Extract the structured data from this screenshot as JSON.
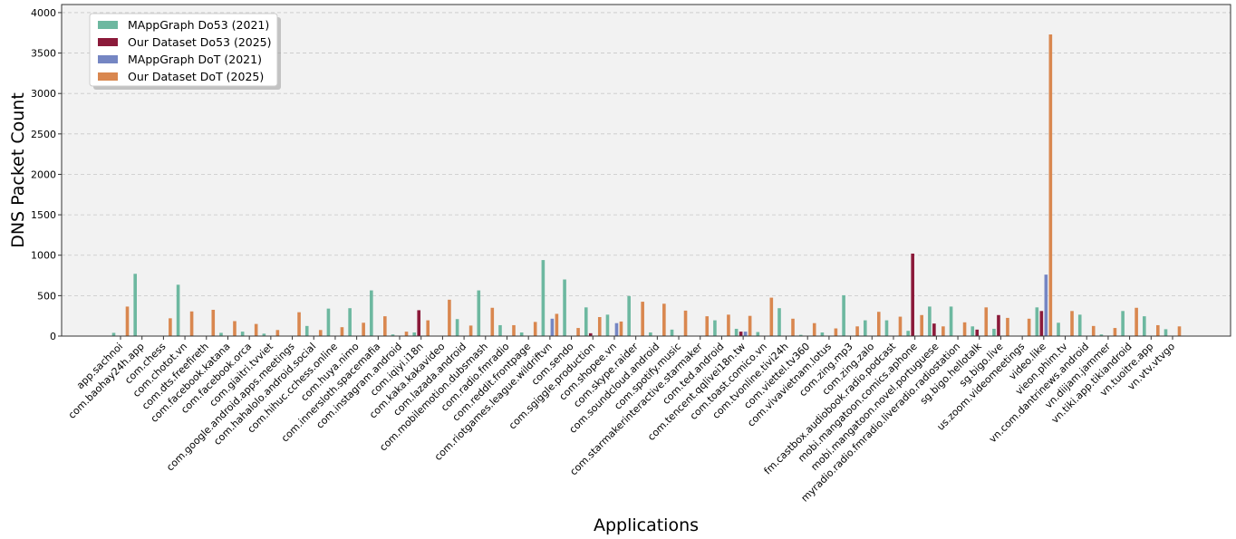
{
  "chart_data": {
    "type": "bar",
    "title": "",
    "xlabel": "Applications",
    "ylabel": "DNS Packet Count",
    "ylim": [
      0,
      4100
    ],
    "yticks": [
      0,
      500,
      1000,
      1500,
      2000,
      2500,
      3000,
      3500,
      4000
    ],
    "grid": true,
    "legend_position": "top-left",
    "colors": [
      "#6db8a0",
      "#8b1a3a",
      "#7586c3",
      "#d9874f"
    ],
    "categories": [
      "app.sachnoi",
      "com.baohay24h.app",
      "com.chess",
      "com.chotot.vn",
      "com.dts.freefireth",
      "com.facebook.katana",
      "com.facebook.orca",
      "com.giaitri.tvviet",
      "com.google.android.apps.meetings",
      "com.hahalolo.android.social",
      "com.hihuc.cchess.online",
      "com.huya.nimo",
      "com.innersloth.spacemafia",
      "com.instagram.android",
      "com.iqiyi.i18n",
      "com.kaka.kakavideo",
      "com.lazada.android",
      "com.mobilemotion.dubsmash",
      "com.radio.fmradio",
      "com.reddit.frontpage",
      "com.riotgames.league.wildriftvn",
      "com.sendo",
      "com.sgiggle.production",
      "com.shopee.vn",
      "com.skype.raider",
      "com.soundcloud.android",
      "com.spotify.music",
      "com.starmakerinteractive.starmaker",
      "com.ted.android",
      "com.tencent.qqlivei18n.tw",
      "com.toast.comico.vn",
      "com.tvonline.tivi24h",
      "com.viettel.tv360",
      "com.vivavietnam.lotus",
      "com.zing.mp3",
      "com.zing.zalo",
      "fm.castbox.audiobook.radio.podcast",
      "mobi.mangatoon.comics.aphone",
      "mobi.mangatoon.novel.portuguese",
      "myradio.radio.fmradio.liveradio.radiostation",
      "sg.bigo.hellotalk",
      "sg.bigo.live",
      "us.zoom.videomeetings",
      "video.like",
      "vieon.phim.tv",
      "vn.com.dantrinews.android",
      "vn.diijam.jammer",
      "vn.tiki.app.tikiandroid",
      "vn.tuoitre.app",
      "vn.vtv.vtvgo"
    ],
    "series": [
      {
        "name": "MAppGraph Do53 (2021)",
        "values": [
          40,
          770,
          0,
          635,
          0,
          40,
          55,
          30,
          0,
          125,
          340,
          345,
          565,
          20,
          45,
          0,
          210,
          565,
          135,
          45,
          940,
          700,
          355,
          265,
          495,
          45,
          80,
          0,
          195,
          90,
          50,
          345,
          15,
          45,
          505,
          195,
          195,
          65,
          365,
          365,
          120,
          90,
          0,
          355,
          165,
          265,
          20,
          310,
          245,
          85
        ]
      },
      {
        "name": "Our Dataset Do53 (2025)",
        "values": [
          0,
          0,
          0,
          0,
          0,
          0,
          0,
          0,
          0,
          0,
          0,
          0,
          0,
          0,
          320,
          0,
          0,
          0,
          0,
          0,
          0,
          0,
          35,
          0,
          0,
          0,
          0,
          0,
          0,
          55,
          0,
          0,
          0,
          0,
          0,
          0,
          0,
          1020,
          155,
          0,
          80,
          260,
          0,
          310,
          0,
          0,
          0,
          0,
          0,
          0
        ]
      },
      {
        "name": "MAppGraph DoT (2021)",
        "values": [
          0,
          0,
          0,
          0,
          0,
          0,
          0,
          0,
          0,
          0,
          0,
          0,
          0,
          0,
          0,
          0,
          0,
          0,
          0,
          0,
          215,
          0,
          0,
          160,
          0,
          0,
          0,
          0,
          0,
          55,
          0,
          0,
          0,
          0,
          0,
          0,
          0,
          0,
          0,
          0,
          0,
          0,
          0,
          760,
          0,
          0,
          0,
          0,
          0,
          0
        ]
      },
      {
        "name": "Our Dataset DoT (2025)",
        "values": [
          365,
          0,
          220,
          305,
          325,
          185,
          150,
          75,
          295,
          75,
          110,
          165,
          245,
          55,
          195,
          450,
          130,
          350,
          135,
          175,
          275,
          100,
          235,
          180,
          425,
          400,
          315,
          245,
          265,
          250,
          475,
          215,
          160,
          95,
          120,
          300,
          240,
          260,
          120,
          170,
          355,
          225,
          215,
          3730,
          310,
          125,
          100,
          350,
          135,
          120
        ]
      }
    ]
  }
}
